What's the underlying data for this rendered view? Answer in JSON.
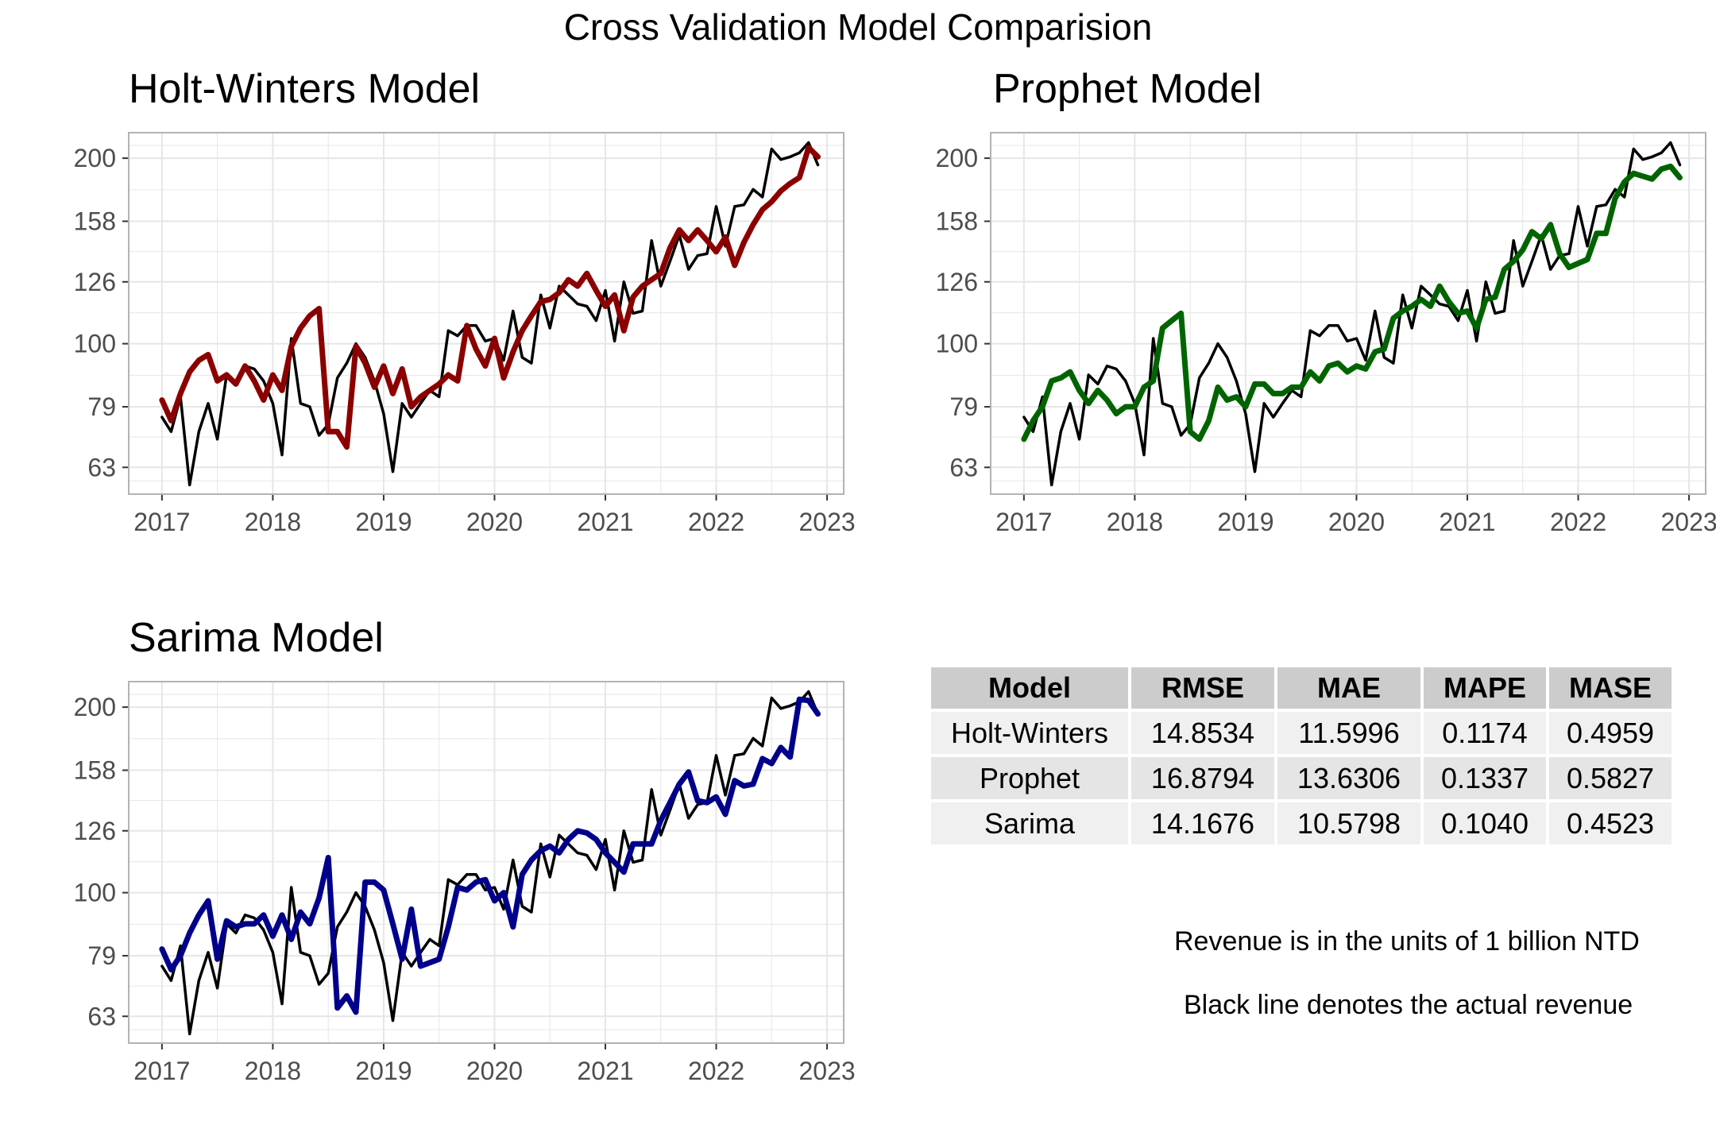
{
  "figure_title": "Cross Validation Model Comparision",
  "colors": {
    "actual": "#000000",
    "holt_winters": "#8b0000",
    "prophet": "#006400",
    "sarima": "#00008b",
    "grid": "#e6e6e6",
    "panel_border": "#b3b3b3",
    "tick_text": "#4d4d4d"
  },
  "chart_data": [
    {
      "type": "line",
      "title": "Holt-Winters Model",
      "x_ticks": [
        "2017",
        "2018",
        "2019",
        "2020",
        "2021",
        "2022",
        "2023"
      ],
      "y_ticks": [
        "63",
        "79",
        "100",
        "126",
        "158",
        "200"
      ],
      "xlim": [
        2016.7,
        2023.15
      ],
      "ylim": [
        57,
        220
      ],
      "y_scale": "log",
      "grid": true,
      "series": [
        {
          "role": "actual",
          "color": "#000000",
          "x": [
            2017.0,
            2017.083,
            2017.167,
            2017.25,
            2017.333,
            2017.417,
            2017.5,
            2017.583,
            2017.667,
            2017.75,
            2017.833,
            2017.917,
            2018.0,
            2018.083,
            2018.167,
            2018.25,
            2018.333,
            2018.417,
            2018.5,
            2018.583,
            2018.667,
            2018.75,
            2018.833,
            2018.917,
            2019.0,
            2019.083,
            2019.167,
            2019.25,
            2019.333,
            2019.417,
            2019.5,
            2019.583,
            2019.667,
            2019.75,
            2019.833,
            2019.917,
            2020.0,
            2020.083,
            2020.167,
            2020.25,
            2020.333,
            2020.417,
            2020.5,
            2020.583,
            2020.667,
            2020.75,
            2020.833,
            2020.917,
            2021.0,
            2021.083,
            2021.167,
            2021.25,
            2021.333,
            2021.417,
            2021.5,
            2021.583,
            2021.667,
            2021.75,
            2021.833,
            2021.917,
            2022.0,
            2022.083,
            2022.167,
            2022.25,
            2022.333,
            2022.417,
            2022.5,
            2022.583,
            2022.667,
            2022.75,
            2022.833,
            2022.917
          ],
          "y": [
            76,
            72,
            82,
            59,
            72,
            80,
            70,
            89,
            86,
            92,
            91,
            87,
            80,
            66,
            102,
            80,
            79,
            71,
            74,
            88,
            93,
            100,
            95,
            87,
            77,
            62,
            80,
            76,
            80,
            84,
            82,
            105,
            103,
            107,
            107,
            101,
            102,
            94,
            113,
            95,
            93,
            120,
            106,
            124,
            120,
            116,
            115,
            109,
            122,
            101,
            126,
            112,
            113,
            147,
            124,
            136,
            150,
            132,
            139,
            140,
            167,
            144,
            167,
            168,
            178,
            173,
            207,
            199,
            201,
            204,
            212,
            195
          ]
        },
        {
          "role": "forecast",
          "color": "#8b0000",
          "x": [
            2017.0,
            2017.083,
            2017.167,
            2017.25,
            2017.333,
            2017.417,
            2017.5,
            2017.583,
            2017.667,
            2017.75,
            2017.833,
            2017.917,
            2018.0,
            2018.083,
            2018.167,
            2018.25,
            2018.333,
            2018.417,
            2018.5,
            2018.583,
            2018.667,
            2018.75,
            2018.833,
            2018.917,
            2019.0,
            2019.083,
            2019.167,
            2019.25,
            2019.333,
            2019.417,
            2019.5,
            2019.583,
            2019.667,
            2019.75,
            2019.833,
            2019.917,
            2020.0,
            2020.083,
            2020.167,
            2020.25,
            2020.333,
            2020.417,
            2020.5,
            2020.583,
            2020.667,
            2020.75,
            2020.833,
            2020.917,
            2021.0,
            2021.083,
            2021.167,
            2021.25,
            2021.333,
            2021.417,
            2021.5,
            2021.583,
            2021.667,
            2021.75,
            2021.833,
            2021.917,
            2022.0,
            2022.083,
            2022.167,
            2022.25,
            2022.333,
            2022.417,
            2022.5,
            2022.583,
            2022.667,
            2022.75,
            2022.833,
            2022.917
          ],
          "y": [
            81,
            75,
            83,
            90,
            94,
            96,
            87,
            89,
            86,
            92,
            87,
            81,
            89,
            84,
            99,
            106,
            111,
            114,
            72,
            72,
            68,
            99,
            93,
            85,
            92,
            83,
            91,
            79,
            82,
            84,
            86,
            89,
            87,
            107,
            98,
            92,
            102,
            88,
            97,
            105,
            111,
            117,
            118,
            121,
            127,
            124,
            130,
            122,
            115,
            120,
            105,
            119,
            124,
            127,
            130,
            143,
            153,
            147,
            153,
            147,
            141,
            149,
            134,
            146,
            156,
            165,
            170,
            177,
            182,
            186,
            208,
            201
          ]
        }
      ]
    },
    {
      "type": "line",
      "title": "Prophet Model",
      "x_ticks": [
        "2017",
        "2018",
        "2019",
        "2020",
        "2021",
        "2022",
        "2023"
      ],
      "y_ticks": [
        "63",
        "79",
        "100",
        "126",
        "158",
        "200"
      ],
      "xlim": [
        2016.7,
        2023.15
      ],
      "ylim": [
        57,
        220
      ],
      "y_scale": "log",
      "grid": true,
      "series": [
        {
          "role": "actual",
          "color": "#000000",
          "x": [
            2017.0,
            2017.083,
            2017.167,
            2017.25,
            2017.333,
            2017.417,
            2017.5,
            2017.583,
            2017.667,
            2017.75,
            2017.833,
            2017.917,
            2018.0,
            2018.083,
            2018.167,
            2018.25,
            2018.333,
            2018.417,
            2018.5,
            2018.583,
            2018.667,
            2018.75,
            2018.833,
            2018.917,
            2019.0,
            2019.083,
            2019.167,
            2019.25,
            2019.333,
            2019.417,
            2019.5,
            2019.583,
            2019.667,
            2019.75,
            2019.833,
            2019.917,
            2020.0,
            2020.083,
            2020.167,
            2020.25,
            2020.333,
            2020.417,
            2020.5,
            2020.583,
            2020.667,
            2020.75,
            2020.833,
            2020.917,
            2021.0,
            2021.083,
            2021.167,
            2021.25,
            2021.333,
            2021.417,
            2021.5,
            2021.583,
            2021.667,
            2021.75,
            2021.833,
            2021.917,
            2022.0,
            2022.083,
            2022.167,
            2022.25,
            2022.333,
            2022.417,
            2022.5,
            2022.583,
            2022.667,
            2022.75,
            2022.833,
            2022.917
          ],
          "y": [
            76,
            72,
            82,
            59,
            72,
            80,
            70,
            89,
            86,
            92,
            91,
            87,
            80,
            66,
            102,
            80,
            79,
            71,
            74,
            88,
            93,
            100,
            95,
            87,
            77,
            62,
            80,
            76,
            80,
            84,
            82,
            105,
            103,
            107,
            107,
            101,
            102,
            94,
            113,
            95,
            93,
            120,
            106,
            124,
            120,
            116,
            115,
            109,
            122,
            101,
            126,
            112,
            113,
            147,
            124,
            136,
            150,
            132,
            139,
            140,
            167,
            144,
            167,
            168,
            178,
            173,
            207,
            199,
            201,
            204,
            212,
            195
          ]
        },
        {
          "role": "forecast",
          "color": "#006400",
          "x": [
            2017.0,
            2017.083,
            2017.167,
            2017.25,
            2017.333,
            2017.417,
            2017.5,
            2017.583,
            2017.667,
            2017.75,
            2017.833,
            2017.917,
            2018.0,
            2018.083,
            2018.167,
            2018.25,
            2018.333,
            2018.417,
            2018.5,
            2018.583,
            2018.667,
            2018.75,
            2018.833,
            2018.917,
            2019.0,
            2019.083,
            2019.167,
            2019.25,
            2019.333,
            2019.417,
            2019.5,
            2019.583,
            2019.667,
            2019.75,
            2019.833,
            2019.917,
            2020.0,
            2020.083,
            2020.167,
            2020.25,
            2020.333,
            2020.417,
            2020.5,
            2020.583,
            2020.667,
            2020.75,
            2020.833,
            2020.917,
            2021.0,
            2021.083,
            2021.167,
            2021.25,
            2021.333,
            2021.417,
            2021.5,
            2021.583,
            2021.667,
            2021.75,
            2021.833,
            2021.917,
            2022.0,
            2022.083,
            2022.167,
            2022.25,
            2022.333,
            2022.417,
            2022.5,
            2022.583,
            2022.667,
            2022.75,
            2022.833,
            2022.917
          ],
          "y": [
            70,
            75,
            79,
            87,
            88,
            90,
            84,
            80,
            84,
            81,
            77,
            79,
            79,
            85,
            87,
            106,
            109,
            112,
            72,
            70,
            75,
            85,
            81,
            82,
            79,
            86,
            86,
            83,
            83,
            85,
            85,
            90,
            87,
            92,
            93,
            90,
            92,
            91,
            97,
            98,
            110,
            113,
            115,
            118,
            115,
            124,
            117,
            112,
            113,
            106,
            118,
            119,
            132,
            136,
            142,
            152,
            148,
            156,
            140,
            133,
            135,
            137,
            151,
            151,
            172,
            183,
            189,
            187,
            185,
            192,
            194,
            186
          ]
        }
      ]
    },
    {
      "type": "line",
      "title": "Sarima Model",
      "x_ticks": [
        "2017",
        "2018",
        "2019",
        "2020",
        "2021",
        "2022",
        "2023"
      ],
      "y_ticks": [
        "63",
        "79",
        "100",
        "126",
        "158",
        "200"
      ],
      "xlim": [
        2016.7,
        2023.15
      ],
      "ylim": [
        57,
        220
      ],
      "y_scale": "log",
      "grid": true,
      "series": [
        {
          "role": "actual",
          "color": "#000000",
          "x": [
            2017.0,
            2017.083,
            2017.167,
            2017.25,
            2017.333,
            2017.417,
            2017.5,
            2017.583,
            2017.667,
            2017.75,
            2017.833,
            2017.917,
            2018.0,
            2018.083,
            2018.167,
            2018.25,
            2018.333,
            2018.417,
            2018.5,
            2018.583,
            2018.667,
            2018.75,
            2018.833,
            2018.917,
            2019.0,
            2019.083,
            2019.167,
            2019.25,
            2019.333,
            2019.417,
            2019.5,
            2019.583,
            2019.667,
            2019.75,
            2019.833,
            2019.917,
            2020.0,
            2020.083,
            2020.167,
            2020.25,
            2020.333,
            2020.417,
            2020.5,
            2020.583,
            2020.667,
            2020.75,
            2020.833,
            2020.917,
            2021.0,
            2021.083,
            2021.167,
            2021.25,
            2021.333,
            2021.417,
            2021.5,
            2021.583,
            2021.667,
            2021.75,
            2021.833,
            2021.917,
            2022.0,
            2022.083,
            2022.167,
            2022.25,
            2022.333,
            2022.417,
            2022.5,
            2022.583,
            2022.667,
            2022.75,
            2022.833,
            2022.917
          ],
          "y": [
            76,
            72,
            82,
            59,
            72,
            80,
            70,
            89,
            86,
            92,
            91,
            87,
            80,
            66,
            102,
            80,
            79,
            71,
            74,
            88,
            93,
            100,
            95,
            87,
            77,
            62,
            80,
            76,
            80,
            84,
            82,
            105,
            103,
            107,
            107,
            101,
            102,
            94,
            113,
            95,
            93,
            120,
            106,
            124,
            120,
            116,
            115,
            109,
            122,
            101,
            126,
            112,
            113,
            147,
            124,
            136,
            150,
            132,
            139,
            140,
            167,
            144,
            167,
            168,
            178,
            173,
            207,
            199,
            201,
            204,
            212,
            195
          ]
        },
        {
          "role": "forecast",
          "color": "#00008b",
          "x": [
            2017.0,
            2017.083,
            2017.167,
            2017.25,
            2017.333,
            2017.417,
            2017.5,
            2017.583,
            2017.667,
            2017.75,
            2017.833,
            2017.917,
            2018.0,
            2018.083,
            2018.167,
            2018.25,
            2018.333,
            2018.417,
            2018.5,
            2018.583,
            2018.667,
            2018.75,
            2018.833,
            2018.917,
            2019.0,
            2019.083,
            2019.167,
            2019.25,
            2019.333,
            2019.417,
            2019.5,
            2019.583,
            2019.667,
            2019.75,
            2019.833,
            2019.917,
            2020.0,
            2020.083,
            2020.167,
            2020.25,
            2020.333,
            2020.417,
            2020.5,
            2020.583,
            2020.667,
            2020.75,
            2020.833,
            2020.917,
            2021.0,
            2021.083,
            2021.167,
            2021.25,
            2021.333,
            2021.417,
            2021.5,
            2021.583,
            2021.667,
            2021.75,
            2021.833,
            2021.917,
            2022.0,
            2022.083,
            2022.167,
            2022.25,
            2022.333,
            2022.417,
            2022.5,
            2022.583,
            2022.667,
            2022.75,
            2022.833,
            2022.917
          ],
          "y": [
            81,
            75,
            79,
            86,
            92,
            97,
            78,
            90,
            88,
            89,
            89,
            92,
            85,
            92,
            84,
            93,
            89,
            98,
            114,
            65,
            68,
            64,
            104,
            104,
            101,
            89,
            78,
            94,
            76,
            77,
            78,
            88,
            102,
            101,
            104,
            105,
            97,
            100,
            88,
            107,
            113,
            117,
            119,
            116,
            122,
            126,
            125,
            122,
            116,
            112,
            108,
            120,
            120,
            120,
            131,
            140,
            150,
            157,
            141,
            140,
            143,
            134,
            152,
            149,
            150,
            165,
            162,
            172,
            166,
            206,
            205,
            195
          ]
        }
      ]
    }
  ],
  "metrics_table": {
    "headers": [
      "Model",
      "RMSE",
      "MAE",
      "MAPE",
      "MASE"
    ],
    "rows": [
      [
        "Holt-Winters",
        "14.8534",
        "11.5996",
        "0.1174",
        "0.4959"
      ],
      [
        "Prophet",
        "16.8794",
        "13.6306",
        "0.1337",
        "0.5827"
      ],
      [
        "Sarima",
        "14.1676",
        "10.5798",
        "0.1040",
        "0.4523"
      ]
    ]
  },
  "notes": {
    "units": "Revenue is in the units of 1 billion NTD",
    "black_line": "Black line denotes the actual revenue"
  }
}
